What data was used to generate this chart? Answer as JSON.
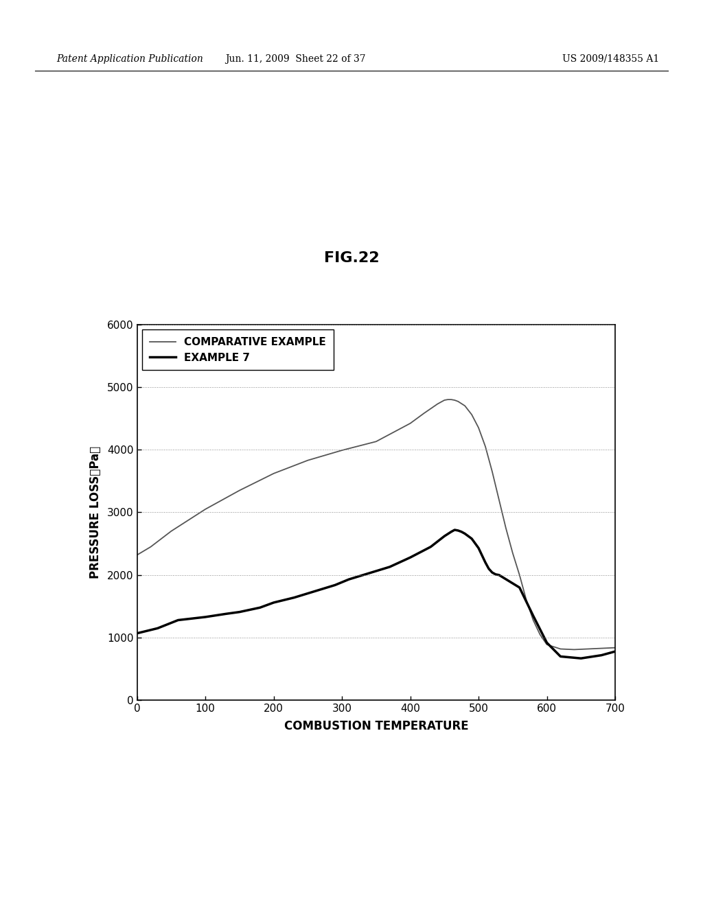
{
  "title": "FIG.22",
  "header_left": "Patent Application Publication",
  "header_center": "Jun. 11, 2009  Sheet 22 of 37",
  "header_right": "US 2009/148355 A1",
  "xlabel": "COMBUSTION TEMPERATURE",
  "ylabel": "PRESSURE LOSS （Pa）",
  "xlim": [
    0,
    700
  ],
  "ylim": [
    0,
    6000
  ],
  "xticks": [
    0,
    100,
    200,
    300,
    400,
    500,
    600,
    700
  ],
  "yticks": [
    0,
    1000,
    2000,
    3000,
    4000,
    5000,
    6000
  ],
  "background_color": "#ffffff",
  "grid_color": "#888888",
  "legend_labels": [
    "COMPARATIVE EXAMPLE",
    "EXAMPLE 7"
  ],
  "comparative_example_x": [
    0,
    20,
    50,
    100,
    150,
    200,
    250,
    300,
    350,
    400,
    420,
    440,
    450,
    455,
    460,
    465,
    470,
    480,
    490,
    500,
    510,
    520,
    530,
    540,
    550,
    560,
    570,
    580,
    590,
    600,
    620,
    640,
    660,
    680,
    700
  ],
  "comparative_example_y": [
    2320,
    2450,
    2700,
    3050,
    3350,
    3620,
    3830,
    3990,
    4130,
    4420,
    4580,
    4730,
    4790,
    4800,
    4800,
    4790,
    4770,
    4700,
    4560,
    4350,
    4050,
    3650,
    3200,
    2750,
    2350,
    2000,
    1600,
    1280,
    1050,
    890,
    820,
    810,
    820,
    830,
    840
  ],
  "example7_x": [
    0,
    30,
    60,
    100,
    130,
    150,
    180,
    200,
    230,
    260,
    290,
    310,
    340,
    370,
    400,
    430,
    450,
    460,
    465,
    470,
    475,
    480,
    490,
    500,
    510,
    515,
    520,
    525,
    530,
    560,
    580,
    600,
    620,
    650,
    680,
    700
  ],
  "example7_y": [
    1070,
    1150,
    1280,
    1330,
    1380,
    1410,
    1480,
    1560,
    1640,
    1740,
    1840,
    1930,
    2030,
    2130,
    2280,
    2450,
    2620,
    2690,
    2720,
    2710,
    2690,
    2660,
    2580,
    2430,
    2200,
    2100,
    2040,
    2010,
    2000,
    1800,
    1350,
    920,
    700,
    670,
    720,
    780
  ],
  "comparative_color": "#555555",
  "example7_color": "#000000",
  "comparative_linewidth": 1.3,
  "example7_linewidth": 2.5,
  "font_size_title": 16,
  "font_size_axis_label": 12,
  "font_size_tick": 11,
  "font_size_legend": 11,
  "font_size_header": 10
}
